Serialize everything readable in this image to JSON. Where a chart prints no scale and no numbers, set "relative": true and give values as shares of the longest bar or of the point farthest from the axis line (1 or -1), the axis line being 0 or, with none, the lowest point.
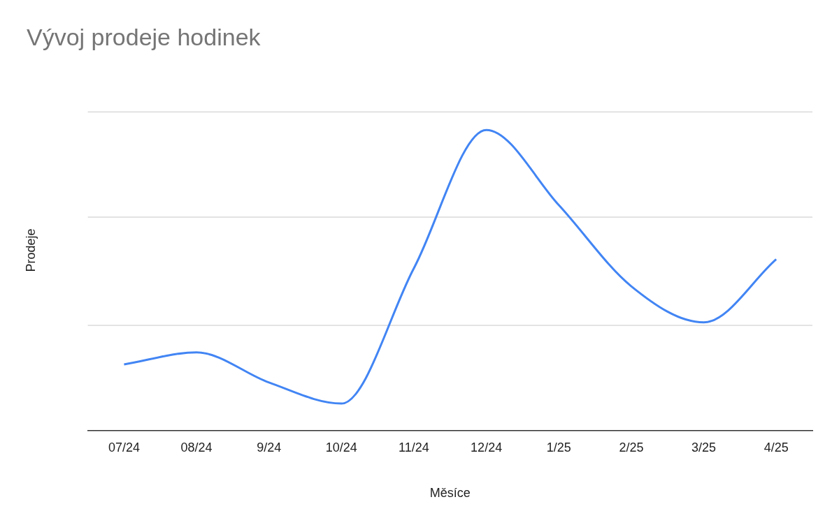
{
  "chart_data": {
    "type": "line",
    "title": "Vývoj prodeje hodinek",
    "xlabel": "Měsíce",
    "ylabel": "Prodeje",
    "categories": [
      "07/24",
      "08/24",
      "9/24",
      "10/24",
      "11/24",
      "12/24",
      "1/25",
      "2/25",
      "3/25",
      "4/25"
    ],
    "series": [
      {
        "color": "#4285f4",
        "values": [
          0.22,
          0.26,
          0.16,
          0.09,
          0.54,
          1,
          0.75,
          0.48,
          0.36,
          0.57
        ]
      }
    ],
    "ref_lines": [
      {
        "axis": "y",
        "value": 0.35,
        "color": "#c8c8c8"
      },
      {
        "axis": "y",
        "value": 0.71,
        "color": "#c8c8c8"
      },
      {
        "axis": "y",
        "value": 1.06,
        "color": "#c8c8c8"
      }
    ],
    "relative": true,
    "legend": false,
    "marker": "none",
    "line_style": "solid"
  }
}
